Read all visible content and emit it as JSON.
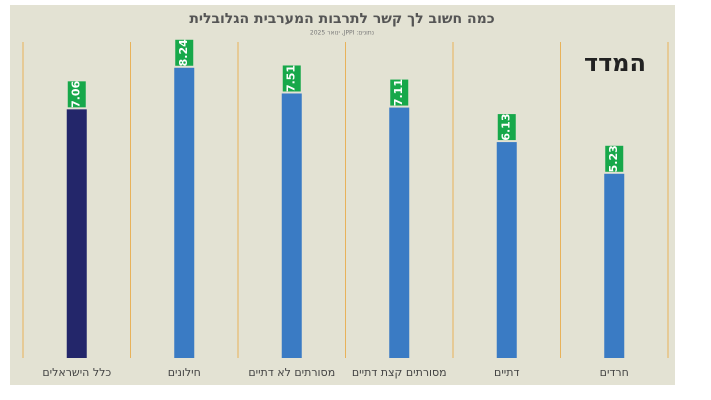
{
  "chart_data": {
    "type": "bar",
    "title": "כמה חשוב לך קשר לתרבות המערבית הגלובלית",
    "subtitle": "נתונים: JPPI, ינואר 2025",
    "logo": "המדד",
    "categories": [
      "כלל הישראלים",
      "חילונים",
      "מסורתים לא דתיים",
      "מסורתים קצת דתיים",
      "דתיים",
      "חרדים"
    ],
    "values": [
      7.06,
      8.24,
      7.51,
      7.11,
      6.13,
      5.23
    ],
    "colors": [
      "#23266a",
      "#3a7bc4",
      "#3a7bc4",
      "#3a7bc4",
      "#3a7bc4",
      "#3a7bc4"
    ],
    "ylim": [
      0,
      9
    ]
  }
}
